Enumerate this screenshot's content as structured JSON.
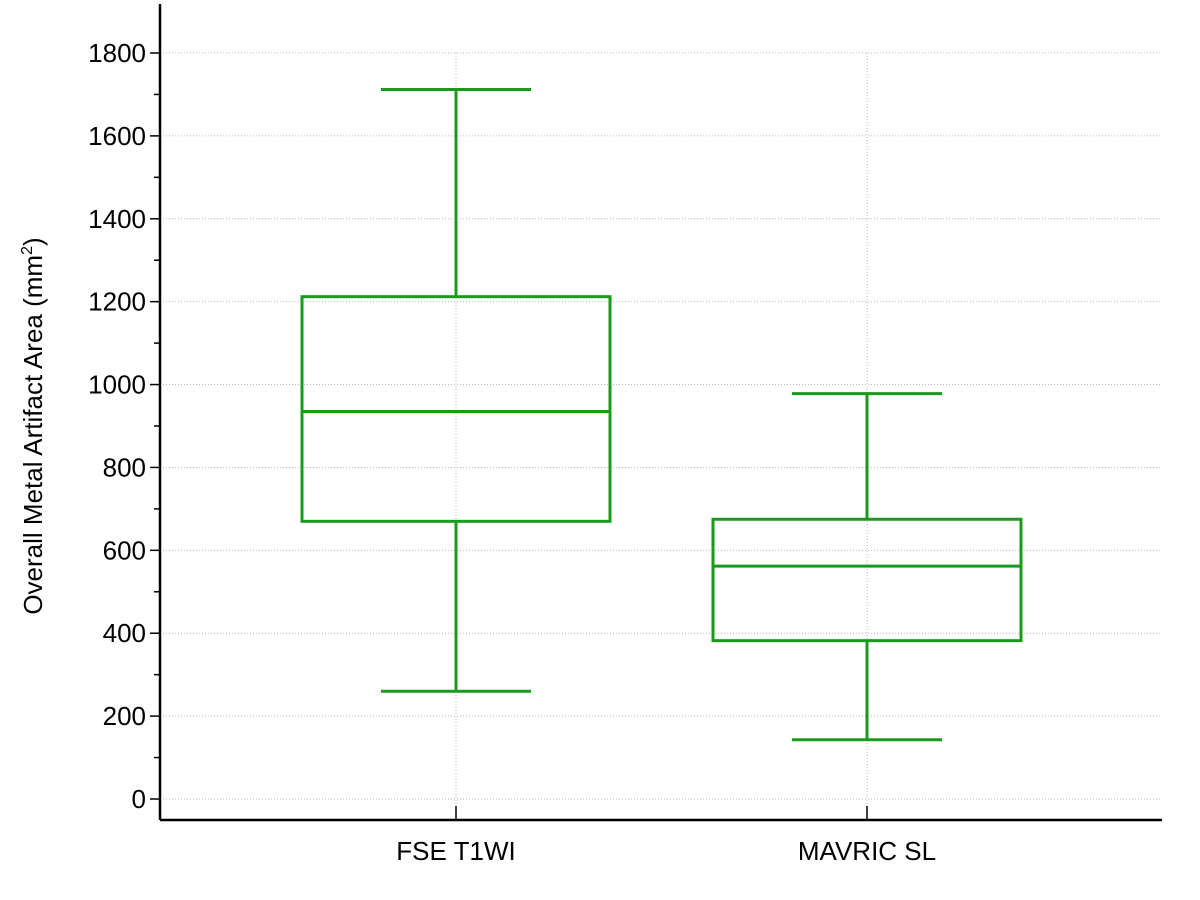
{
  "chart_data": {
    "type": "box",
    "title": "",
    "xlabel": "",
    "ylabel": {
      "text": "Overall Metal Artifact Area (mm",
      "superscript": "2",
      "suffix": ")"
    },
    "ylim": [
      -50,
      1850
    ],
    "yticks": [
      0,
      200,
      400,
      600,
      800,
      1000,
      1200,
      1400,
      1600,
      1800
    ],
    "yminor_step": 100,
    "grid": true,
    "color": "#1a9a1a",
    "categories": [
      "FSE T1WI",
      "MAVRIC SL"
    ],
    "boxes": [
      {
        "category": "FSE T1WI",
        "min": 260,
        "q1": 670,
        "median": 935,
        "q3": 1212,
        "max": 1712
      },
      {
        "category": "MAVRIC SL",
        "min": 143,
        "q1": 382,
        "median": 562,
        "q3": 675,
        "max": 978
      }
    ]
  }
}
